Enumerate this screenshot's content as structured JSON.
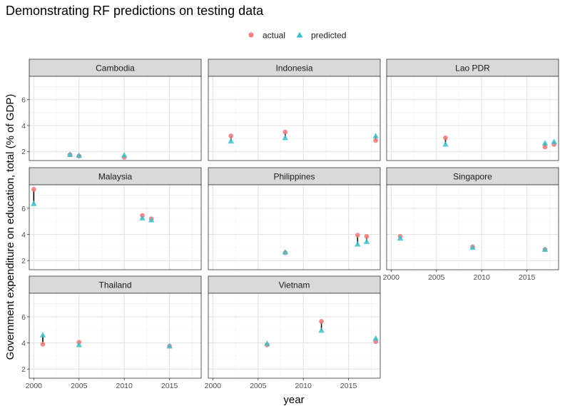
{
  "chart_data": {
    "type": "scatter",
    "title": "Demonstrating RF predictions on testing data",
    "xlabel": "year",
    "ylabel": "Government expenditure on education, total (% of GDP)",
    "xlim": [
      1999.5,
      2018.5
    ],
    "ylim": [
      1.3,
      7.8
    ],
    "x_ticks": [
      2000,
      2005,
      2010,
      2015
    ],
    "y_ticks": [
      2,
      4,
      6
    ],
    "grid": true,
    "legend_position": "top",
    "legend": [
      {
        "label": "actual",
        "shape": "circle",
        "color": "#f08080"
      },
      {
        "label": "predicted",
        "shape": "triangle",
        "color": "#3ebfc9"
      }
    ],
    "series_names": [
      "actual",
      "predicted"
    ],
    "panels": [
      {
        "name": "Cambodia",
        "points": [
          {
            "x": 2004,
            "actual": 1.75,
            "predicted": 1.75
          },
          {
            "x": 2005,
            "actual": 1.65,
            "predicted": 1.7
          },
          {
            "x": 2010,
            "actual": 1.55,
            "predicted": 1.72
          }
        ]
      },
      {
        "name": "Indonesia",
        "points": [
          {
            "x": 2002,
            "actual": 3.2,
            "predicted": 2.8
          },
          {
            "x": 2008,
            "actual": 3.5,
            "predicted": 3.05
          },
          {
            "x": 2018,
            "actual": 2.85,
            "predicted": 3.2
          }
        ]
      },
      {
        "name": "Lao PDR",
        "points": [
          {
            "x": 2006,
            "actual": 3.05,
            "predicted": 2.55
          },
          {
            "x": 2017,
            "actual": 2.35,
            "predicted": 2.65
          },
          {
            "x": 2018,
            "actual": 2.55,
            "predicted": 2.75
          }
        ]
      },
      {
        "name": "Malaysia",
        "points": [
          {
            "x": 2000,
            "actual": 7.45,
            "predicted": 6.35
          },
          {
            "x": 2012,
            "actual": 5.45,
            "predicted": 5.25
          },
          {
            "x": 2013,
            "actual": 5.2,
            "predicted": 5.1
          }
        ]
      },
      {
        "name": "Philippines",
        "points": [
          {
            "x": 2008,
            "actual": 2.6,
            "predicted": 2.65
          },
          {
            "x": 2016,
            "actual": 3.95,
            "predicted": 3.25
          },
          {
            "x": 2017,
            "actual": 3.85,
            "predicted": 3.45
          }
        ]
      },
      {
        "name": "Singapore",
        "points": [
          {
            "x": 2001,
            "actual": 3.85,
            "predicted": 3.7
          },
          {
            "x": 2009,
            "actual": 3.05,
            "predicted": 3.0
          },
          {
            "x": 2017,
            "actual": 2.85,
            "predicted": 2.85
          }
        ]
      },
      {
        "name": "Thailand",
        "points": [
          {
            "x": 2001,
            "actual": 3.9,
            "predicted": 4.6
          },
          {
            "x": 2005,
            "actual": 4.05,
            "predicted": 3.85
          },
          {
            "x": 2015,
            "actual": 3.75,
            "predicted": 3.75
          }
        ]
      },
      {
        "name": "Vietnam",
        "points": [
          {
            "x": 2006,
            "actual": 3.85,
            "predicted": 3.95
          },
          {
            "x": 2012,
            "actual": 5.65,
            "predicted": 4.95
          },
          {
            "x": 2018,
            "actual": 4.1,
            "predicted": 4.35
          }
        ]
      }
    ]
  }
}
